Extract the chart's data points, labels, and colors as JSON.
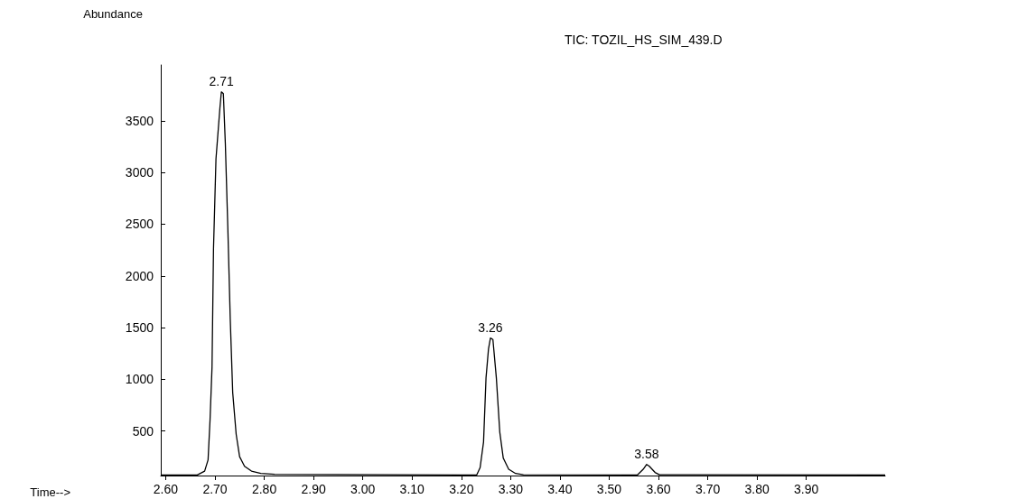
{
  "chart_data": {
    "type": "line",
    "title": "TIC: TOZIL_HS_SIM_439.D",
    "xlabel": "Time-->",
    "ylabel": "Abundance",
    "x": [
      2.59,
      2.664,
      2.679,
      2.686,
      2.69,
      2.694,
      2.697,
      2.702,
      2.71,
      2.713,
      2.717,
      2.721,
      2.726,
      2.731,
      2.736,
      2.743,
      2.75,
      2.76,
      2.774,
      2.793,
      2.821,
      3.231,
      3.238,
      3.245,
      3.25,
      3.255,
      3.259,
      3.264,
      3.271,
      3.278,
      3.285,
      3.296,
      3.31,
      3.326,
      3.557,
      3.569,
      3.576,
      3.581,
      3.593,
      3.602,
      4.06
    ],
    "series": [
      {
        "color": "#000000",
        "values": [
          75,
          76,
          113,
          222,
          608,
          1118,
          2263,
          3130,
          3624,
          3780,
          3763,
          3283,
          2479,
          1582,
          871,
          469,
          252,
          160,
          113,
          91,
          82,
          75,
          146,
          394,
          1013,
          1292,
          1400,
          1385,
          1013,
          487,
          239,
          131,
          90,
          78,
          75,
          131,
          177,
          162,
          100,
          78,
          75
        ]
      }
    ],
    "annotations": [
      {
        "text": "2.71",
        "x": 2.713,
        "y": 3780
      },
      {
        "text": "3.26",
        "x": 3.259,
        "y": 1400
      },
      {
        "text": "3.58",
        "x": 3.576,
        "y": 177
      }
    ],
    "xlim": [
      2.59,
      4.06
    ],
    "ylim": [
      70,
      4040
    ],
    "xticks": [
      {
        "value": 2.6,
        "label": "2.60"
      },
      {
        "value": 2.7,
        "label": "2.70"
      },
      {
        "value": 2.8,
        "label": "2.80"
      },
      {
        "value": 2.9,
        "label": "2.90"
      },
      {
        "value": 3.0,
        "label": "3.00"
      },
      {
        "value": 3.1,
        "label": "3.10"
      },
      {
        "value": 3.2,
        "label": "3.20"
      },
      {
        "value": 3.3,
        "label": "3.30"
      },
      {
        "value": 3.4,
        "label": "3.40"
      },
      {
        "value": 3.5,
        "label": "3.50"
      },
      {
        "value": 3.6,
        "label": "3.60"
      },
      {
        "value": 3.7,
        "label": "3.70"
      },
      {
        "value": 3.8,
        "label": "3.80"
      },
      {
        "value": 3.9,
        "label": "3.90"
      }
    ],
    "yticks": [
      500,
      1000,
      1500,
      2000,
      2500,
      3000,
      3500
    ],
    "grid": false,
    "marker": "none",
    "line_style": "solid"
  }
}
